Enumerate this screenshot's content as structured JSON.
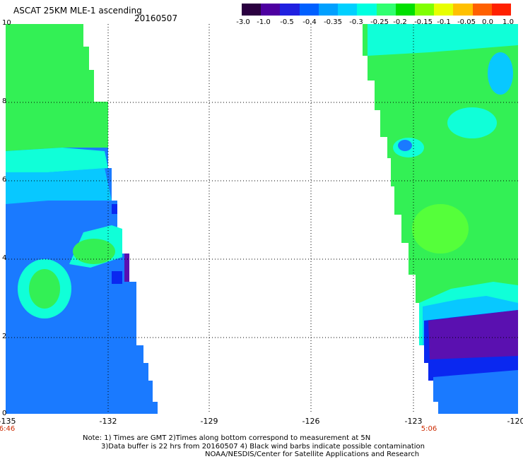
{
  "header": {
    "title": "ASCAT 25KM MLE-1 ascending",
    "date": "20160507"
  },
  "colorbar": {
    "tick_labels": [
      "-3.0",
      "-1.0",
      "-0.5",
      "-0.4",
      "-0.35",
      "-0.3",
      "-0.25",
      "-0.2",
      "-0.15",
      "-0.1",
      "-0.05",
      "0.0",
      "1.0"
    ],
    "colors": [
      "#2a0040",
      "#4d00a0",
      "#2020e0",
      "#0060ff",
      "#00a0ff",
      "#00d0ff",
      "#00ffe0",
      "#30ff70",
      "#00e000",
      "#80ff00",
      "#e8ff00",
      "#ffc000",
      "#ff6000",
      "#ff2000"
    ]
  },
  "axes": {
    "y_labels": [
      "10",
      "8",
      "6",
      "4",
      "2",
      "0"
    ],
    "x_labels": [
      "-135",
      "-132",
      "-129",
      "-126",
      "-123",
      "-120"
    ],
    "time_labels": [
      "6:46",
      "5:06"
    ]
  },
  "notes": {
    "line1": "Note: 1) Times are GMT 2)Times along bottom correspond to measurement at 5N",
    "line2": "3)Data buffer is 22 hrs from 20160507 4) Black wind barbs indicate possible contamination",
    "line3": "NOAA/NESDIS/Center for Satellite Applications and Research"
  }
}
